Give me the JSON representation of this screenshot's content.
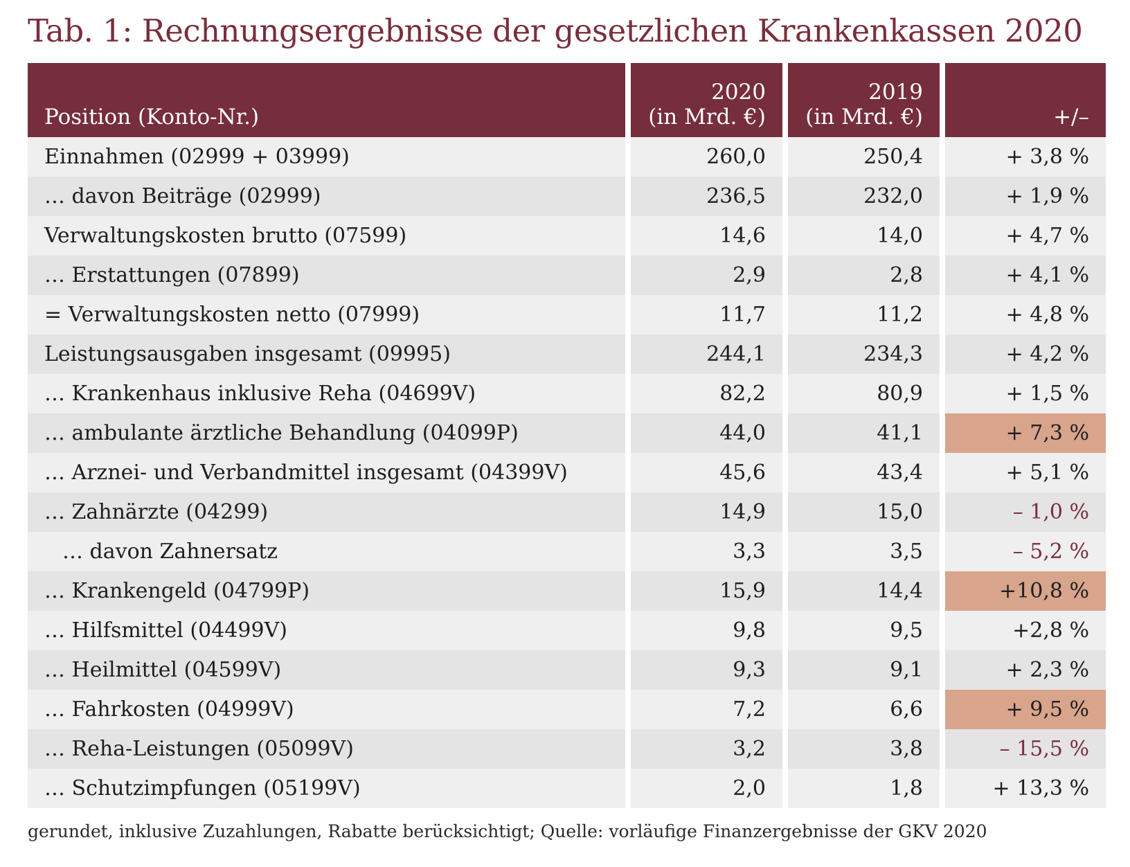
{
  "title": "Tab. 1: Rechnungsergebnisse der gesetzlichen Krankenkassen 2020",
  "header": {
    "position": "Position (Konto-Nr.)",
    "col2020_year": "2020",
    "col2020_unit": "(in Mrd. €)",
    "col2019_year": "2019",
    "col2019_unit": "(in Mrd. €)",
    "change": "+/–"
  },
  "colors": {
    "header_background": "#762d3c",
    "highlight": "#d8a48b",
    "negative_text": "#7a2e3c"
  },
  "rows": [
    {
      "label": "Einnahmen (02999 + 03999)",
      "v2020": "260,0",
      "v2019": "250,4",
      "change": "+ 3,8 %"
    },
    {
      "label": "… davon Beiträge (02999)",
      "v2020": "236,5",
      "v2019": "232,0",
      "change": "+ 1,9 %"
    },
    {
      "label": "Verwaltungskosten brutto (07599)",
      "v2020": "14,6",
      "v2019": "14,0",
      "change": "+ 4,7 %"
    },
    {
      "label": "… Erstattungen (07899)",
      "v2020": "2,9",
      "v2019": "2,8",
      "change": "+ 4,1 %"
    },
    {
      "label": "= Verwaltungskosten netto (07999)",
      "v2020": "11,7",
      "v2019": "11,2",
      "change": "+ 4,8 %"
    },
    {
      "label": "Leistungsausgaben insgesamt (09995)",
      "v2020": "244,1",
      "v2019": "234,3",
      "change": "+ 4,2 %"
    },
    {
      "label": "… Krankenhaus inklusive Reha (04699V)",
      "v2020": "82,2",
      "v2019": "80,9",
      "change": "+ 1,5 %"
    },
    {
      "label": "… ambulante ärztliche Behandlung (04099P)",
      "v2020": "44,0",
      "v2019": "41,1",
      "change": "+ 7,3 %"
    },
    {
      "label": "… Arznei- und Verbandmittel insgesamt (04399V)",
      "v2020": "45,6",
      "v2019": "43,4",
      "change": "+ 5,1 %"
    },
    {
      "label": "… Zahnärzte (04299)",
      "v2020": "14,9",
      "v2019": "15,0",
      "change": "– 1,0 %"
    },
    {
      "label": "… davon Zahnersatz",
      "v2020": "3,3",
      "v2019": "3,5",
      "change": "– 5,2 %"
    },
    {
      "label": "… Krankengeld (04799P)",
      "v2020": "15,9",
      "v2019": "14,4",
      "change": "+10,8 %"
    },
    {
      "label": "… Hilfsmittel (04499V)",
      "v2020": "9,8",
      "v2019": "9,5",
      "change": "+2,8 %"
    },
    {
      "label": "… Heilmittel (04599V)",
      "v2020": "9,3",
      "v2019": "9,1",
      "change": "+ 2,3 %"
    },
    {
      "label": "… Fahrkosten (04999V)",
      "v2020": "7,2",
      "v2019": "6,6",
      "change": "+ 9,5 %"
    },
    {
      "label": "… Reha-Leistungen (05099V)",
      "v2020": "3,2",
      "v2019": "3,8",
      "change": "– 15,5 %"
    },
    {
      "label": "… Schutzimpfungen (05199V)",
      "v2020": "2,0",
      "v2019": "1,8",
      "change": "+ 13,3 %"
    }
  ],
  "footnote": "gerundet, inklusive Zuzahlungen, Rabatte berücksichtigt; Quelle: vorläufige Finanzergebnisse der GKV 2020"
}
